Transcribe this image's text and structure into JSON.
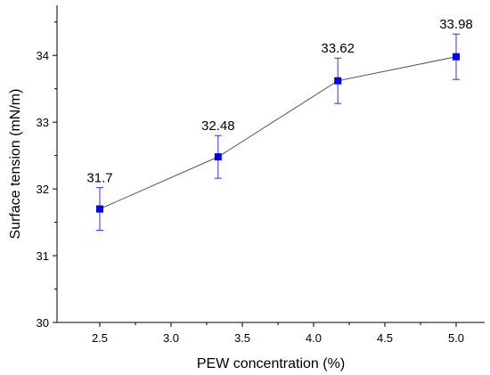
{
  "chart_data": {
    "type": "line",
    "title": "",
    "xlabel": "PEW concentration (%)",
    "ylabel": "Surface tension (mN/m)",
    "xlim": [
      2.2,
      5.2
    ],
    "ylim": [
      30,
      34.75
    ],
    "x_ticks": [
      "2.5",
      "3.0",
      "3.5",
      "4.0",
      "4.5",
      "5.0"
    ],
    "y_ticks": [
      "30",
      "31",
      "32",
      "33",
      "34"
    ],
    "grid": false,
    "colors": {
      "marker": "#0000ee",
      "line": "#555555",
      "error_bar": "#3333cc"
    },
    "series": [
      {
        "x": [
          2.5,
          3.33,
          4.17,
          5.0
        ],
        "y": [
          31.7,
          32.48,
          33.62,
          33.98
        ],
        "error": [
          0.32,
          0.32,
          0.34,
          0.34
        ],
        "data_labels": [
          "31.7",
          "32.48",
          "33.62",
          "33.98"
        ]
      }
    ]
  }
}
